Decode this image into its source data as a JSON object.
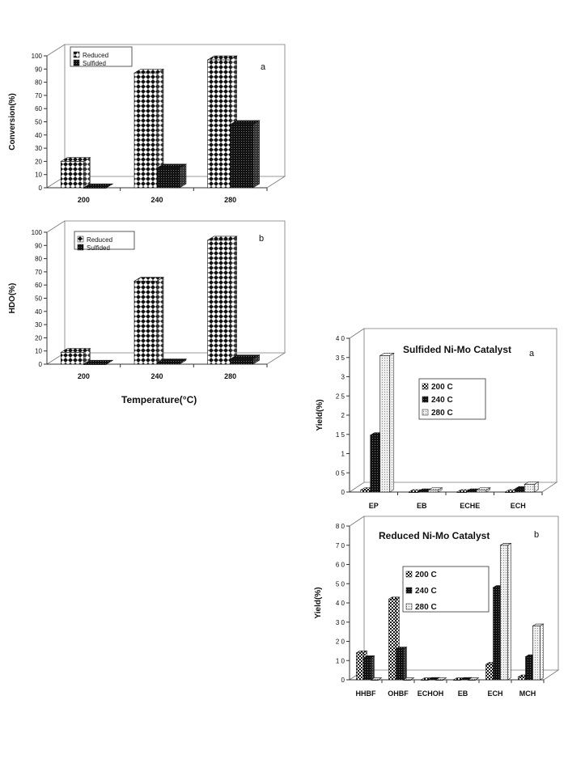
{
  "chart_data": [
    {
      "type": "bar",
      "panel_label": "a",
      "title": "",
      "ylabel": "Conversion(%)",
      "xlabel": "",
      "categories": [
        "200",
        "240",
        "280"
      ],
      "yticks": [
        "0",
        "10",
        "20",
        "30",
        "40",
        "50",
        "60",
        "70",
        "80",
        "90",
        "100"
      ],
      "ylim": [
        0,
        100
      ],
      "legend_position": "top-left",
      "series": [
        {
          "name": "Reduced",
          "values": [
            20,
            87,
            97
          ],
          "pattern": "diamond-check"
        },
        {
          "name": "Sulfided",
          "values": [
            0,
            15,
            48
          ],
          "pattern": "dark-dots"
        }
      ]
    },
    {
      "type": "bar",
      "panel_label": "b",
      "title": "",
      "ylabel": "HDO(%)",
      "xlabel": "Temperature(°C)",
      "categories": [
        "200",
        "240",
        "280"
      ],
      "yticks": [
        "0",
        "10",
        "20",
        "30",
        "40",
        "50",
        "60",
        "70",
        "80",
        "90",
        "100"
      ],
      "ylim": [
        0,
        100
      ],
      "legend_position": "top-left",
      "series": [
        {
          "name": "Reduced",
          "values": [
            9,
            63,
            94
          ],
          "pattern": "diamond-check"
        },
        {
          "name": "Sulfided",
          "values": [
            0,
            1,
            4
          ],
          "pattern": "dark-dots"
        }
      ]
    },
    {
      "type": "bar",
      "panel_label": "a",
      "title": "Sulfided Ni-Mo Catalyst",
      "ylabel": "Yield(%)",
      "xlabel": "",
      "categories": [
        "EP",
        "EB",
        "ECHE",
        "ECH"
      ],
      "yticks": [
        "0",
        "0.5",
        "1",
        "1.5",
        "2",
        "2.5",
        "3",
        "3.5",
        "4"
      ],
      "ytick_labels": [
        "0",
        "0 5",
        "1",
        "1 5",
        "2",
        "2 5",
        "3",
        "3 5",
        "4 0"
      ],
      "ylim": [
        0,
        4
      ],
      "legend_position": "center-right",
      "series": [
        {
          "name": "200 C",
          "values": [
            0.05,
            0.0,
            0.0,
            0.0
          ],
          "pattern": "checker"
        },
        {
          "name": "240 C",
          "values": [
            1.48,
            0.02,
            0.02,
            0.08
          ],
          "pattern": "dark-dots"
        },
        {
          "name": "280 C",
          "values": [
            3.55,
            0.05,
            0.05,
            0.2
          ],
          "pattern": "light-dots"
        }
      ]
    },
    {
      "type": "bar",
      "panel_label": "b",
      "title": "Reduced Ni-Mo Catalyst",
      "ylabel": "Yield(%)",
      "xlabel": "",
      "categories": [
        "HHBF",
        "OHBF",
        "ECHOH",
        "EB",
        "ECH",
        "MCH"
      ],
      "yticks": [
        "0",
        "1",
        "2",
        "3",
        "4",
        "5",
        "6",
        "7",
        "8"
      ],
      "ytick_labels": [
        "0",
        "1 0",
        "2 0",
        "3 0",
        "4 0",
        "5 0",
        "6 0",
        "7 0",
        "8 0"
      ],
      "ylim": [
        0,
        8
      ],
      "legend_position": "center-right",
      "series": [
        {
          "name": "200 C",
          "values": [
            1.4,
            4.2,
            0.0,
            0.0,
            0.8,
            0.15
          ],
          "pattern": "checker"
        },
        {
          "name": "240 C",
          "values": [
            1.15,
            1.6,
            0.02,
            0.02,
            4.8,
            1.2
          ],
          "pattern": "dark-dots"
        },
        {
          "name": "280 C",
          "values": [
            0.0,
            0.0,
            0.0,
            0.0,
            7.0,
            2.8
          ],
          "pattern": "light-dots"
        }
      ]
    }
  ]
}
